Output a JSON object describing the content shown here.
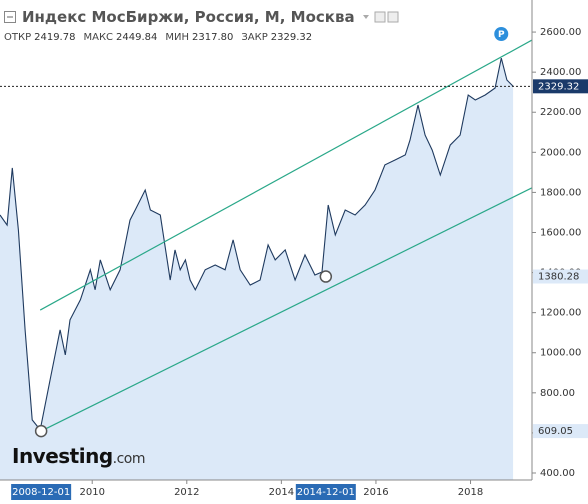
{
  "chart_data": {
    "type": "area",
    "title": "Индекс МосБиржи, Россия, М, Москва",
    "ohlc": [
      {
        "label": "ОТКР",
        "value": "2419.78"
      },
      {
        "label": "МАКС",
        "value": "2449.84"
      },
      {
        "label": "МИН",
        "value": "2317.80"
      },
      {
        "label": "ЗАКР",
        "value": "2329.32"
      }
    ],
    "logo": [
      "Investing",
      ".com"
    ],
    "color": "#1f3a5f",
    "fill": "#dce9f8",
    "x": [
      2008.05,
      2008.2,
      2008.31,
      2008.44,
      2008.58,
      2008.73,
      2008.9,
      2009.11,
      2009.32,
      2009.43,
      2009.53,
      2009.75,
      2009.96,
      2010.06,
      2010.17,
      2010.38,
      2010.59,
      2010.8,
      2010.91,
      2011.12,
      2011.23,
      2011.44,
      2011.65,
      2011.75,
      2011.86,
      2011.97,
      2012.07,
      2012.18,
      2012.39,
      2012.6,
      2012.81,
      2012.98,
      2013.13,
      2013.34,
      2013.55,
      2013.72,
      2013.87,
      2014.08,
      2014.29,
      2014.5,
      2014.71,
      2014.86,
      2014.99,
      2015.14,
      2015.35,
      2015.56,
      2015.77,
      2015.98,
      2016.19,
      2016.41,
      2016.62,
      2016.72,
      2016.89,
      2017.04,
      2017.19,
      2017.36,
      2017.57,
      2017.78,
      2017.95,
      2018.1,
      2018.31,
      2018.52,
      2018.65,
      2018.77,
      2018.9
    ],
    "values": [
      1687,
      1637,
      1922,
      1612,
      1114,
      665,
      615,
      865,
      1114,
      989,
      1164,
      1264,
      1414,
      1314,
      1463,
      1314,
      1414,
      1662,
      1712,
      1812,
      1712,
      1687,
      1363,
      1513,
      1414,
      1463,
      1363,
      1314,
      1414,
      1438,
      1414,
      1563,
      1414,
      1338,
      1363,
      1538,
      1463,
      1513,
      1363,
      1488,
      1388,
      1403,
      1737,
      1588,
      1712,
      1687,
      1737,
      1812,
      1937,
      1962,
      1987,
      2061,
      2236,
      2086,
      2011,
      1887,
      2036,
      2086,
      2286,
      2261,
      2286,
      2321,
      2470,
      2361,
      2329.32
    ],
    "xlim": [
      2008.05,
      2019.3
    ],
    "ylim": [
      365,
      2760
    ],
    "xticks": [
      2010,
      2012,
      2014,
      2016,
      2018
    ],
    "yticks": [
      {
        "value": 400,
        "label": "400.00"
      },
      {
        "value": 600,
        "label": "600.00"
      },
      {
        "value": 800,
        "label": "800.00"
      },
      {
        "value": 1000,
        "label": "1000.00"
      },
      {
        "value": 1200,
        "label": "1200.00"
      },
      {
        "value": 1400,
        "label": "1400.00"
      },
      {
        "value": 1600,
        "label": "1600.00"
      },
      {
        "value": 1800,
        "label": "1800.00"
      },
      {
        "value": 2000,
        "label": "2000.00"
      },
      {
        "value": 2200,
        "label": "2200.00"
      },
      {
        "value": 2400,
        "label": "2400.00"
      },
      {
        "value": 2600,
        "label": "2600.00"
      }
    ],
    "current": {
      "value": 2329.32,
      "color": "#1a3a6a"
    },
    "trendlines": [
      {
        "color": "#2aa889",
        "x": [
          2008.92,
          2020.49
        ],
        "values": [
          609.05,
          1962
        ]
      },
      {
        "color": "#2aa889",
        "x": [
          2008.9,
          2019.3
        ],
        "values": [
          1213,
          2560
        ]
      }
    ],
    "markers": [
      {
        "x": 2008.92,
        "value": 609.05,
        "date": "2008-12-01"
      },
      {
        "x": 2014.94,
        "value": 1380.28,
        "date": "2014-12-01"
      }
    ],
    "event_marker": {
      "label": "P",
      "x": 2018.65,
      "color": "#2d8fdc"
    }
  }
}
